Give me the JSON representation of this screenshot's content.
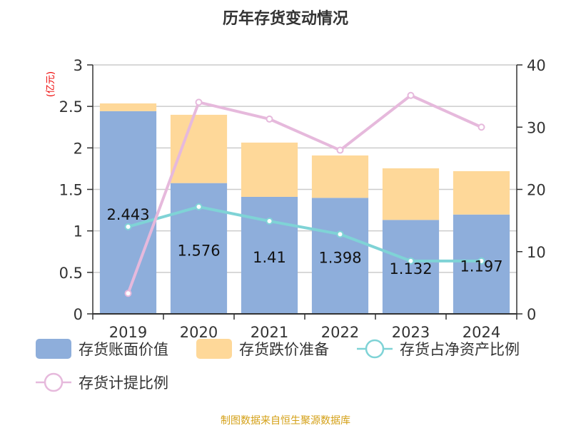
{
  "chart_data": {
    "type": "bar+line",
    "title": "历年存货变动情况",
    "ylabel_left": "(亿元)",
    "ylabel_right": "%",
    "categories": [
      "2019",
      "2020",
      "2021",
      "2022",
      "2023",
      "2024"
    ],
    "ylim_left": [
      0,
      3
    ],
    "yticks_left": [
      "0",
      "0.5",
      "1",
      "1.5",
      "2",
      "2.5",
      "3"
    ],
    "ylim_right": [
      0,
      40
    ],
    "yticks_right": [
      "0",
      "10",
      "20",
      "30",
      "40"
    ],
    "grid": true,
    "legend_placement": "bottom",
    "series": [
      {
        "name": "存货账面价值",
        "type": "bar",
        "stack": "a",
        "axis": "left",
        "color": "#8eaedb",
        "values": [
          2.443,
          1.576,
          1.41,
          1.398,
          1.132,
          1.197
        ],
        "labels": [
          "2.443",
          "1.576",
          "1.41",
          "1.398",
          "1.132",
          "1.197"
        ]
      },
      {
        "name": "存货跌价准备",
        "type": "bar",
        "stack": "a",
        "axis": "left",
        "color": "#fed899",
        "values": [
          0.093,
          0.823,
          0.654,
          0.511,
          0.622,
          0.523
        ]
      },
      {
        "name": "存货占净资产比例",
        "type": "line",
        "axis": "right",
        "color": "#7fd3d6",
        "values": [
          14.0,
          17.2,
          14.9,
          12.8,
          8.5,
          8.5
        ]
      },
      {
        "name": "存货计提比例",
        "type": "line",
        "axis": "right",
        "color": "#e6b9dc",
        "values": [
          3.3,
          34.0,
          31.3,
          26.3,
          35.1,
          30.0
        ]
      }
    ]
  },
  "source": "制图数据来自恒生聚源数据库"
}
